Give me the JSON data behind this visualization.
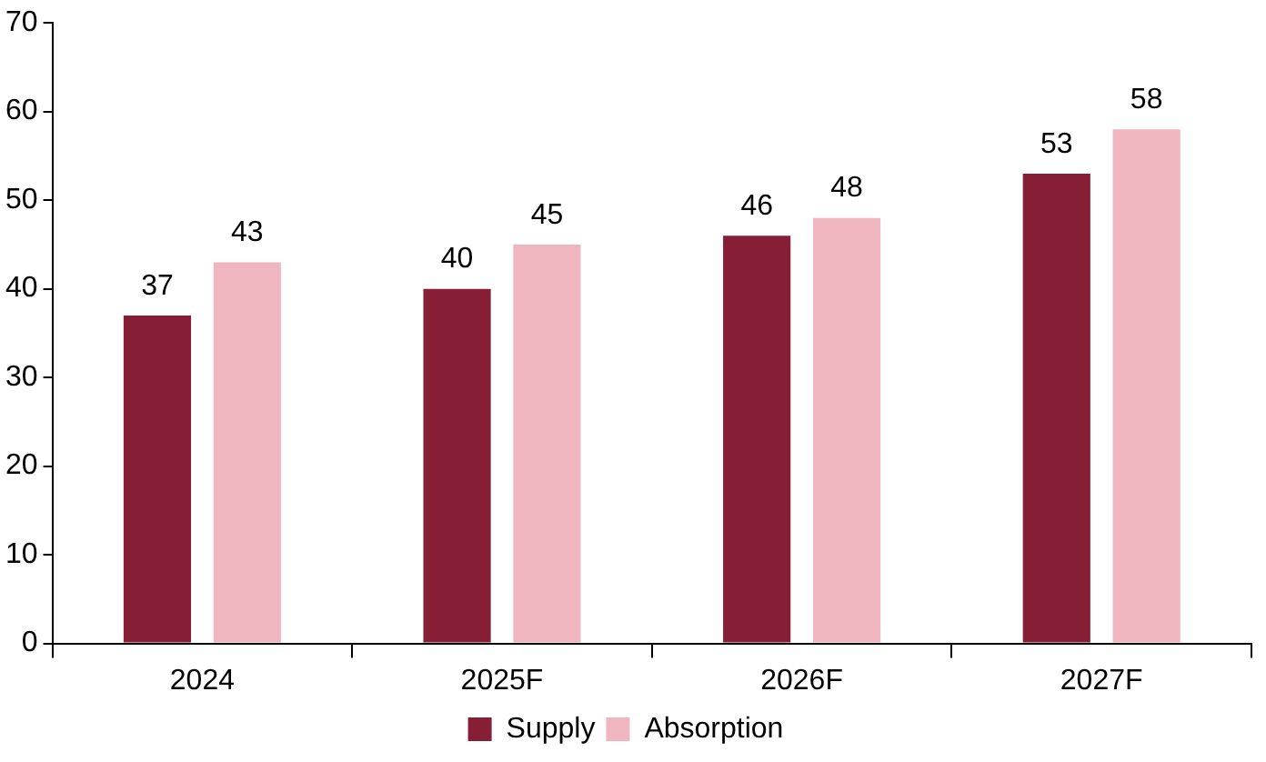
{
  "chart_data": {
    "type": "bar",
    "categories": [
      "2024",
      "2025F",
      "2026F",
      "2027F"
    ],
    "series": [
      {
        "name": "Supply",
        "color": "#861f35",
        "values": [
          37,
          40,
          46,
          53
        ]
      },
      {
        "name": "Absorption",
        "color": "#f0b6c0",
        "values": [
          43,
          45,
          48,
          58
        ]
      }
    ],
    "ylim": [
      0,
      70
    ],
    "yticks": [
      0,
      10,
      20,
      30,
      40,
      50,
      60,
      70
    ],
    "grid": false,
    "legend": "bottom",
    "data_labels": true
  }
}
